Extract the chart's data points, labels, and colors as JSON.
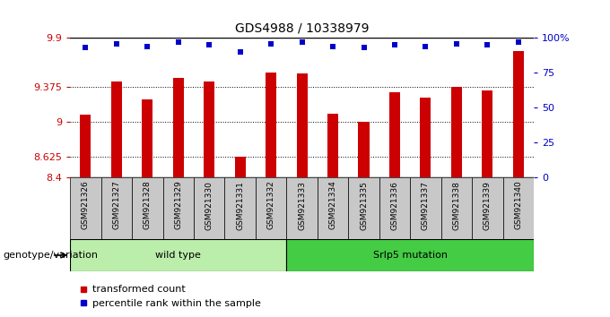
{
  "title": "GDS4988 / 10338979",
  "samples": [
    "GSM921326",
    "GSM921327",
    "GSM921328",
    "GSM921329",
    "GSM921330",
    "GSM921331",
    "GSM921332",
    "GSM921333",
    "GSM921334",
    "GSM921335",
    "GSM921336",
    "GSM921337",
    "GSM921338",
    "GSM921339",
    "GSM921340"
  ],
  "bar_values": [
    9.08,
    9.43,
    9.24,
    9.47,
    9.43,
    8.62,
    9.53,
    9.52,
    9.09,
    9.0,
    9.32,
    9.26,
    9.375,
    9.34,
    9.76
  ],
  "dot_values": [
    93,
    96,
    94,
    97,
    95,
    90,
    96,
    97,
    94,
    93,
    95,
    94,
    96,
    95,
    97
  ],
  "ylim": [
    8.4,
    9.9
  ],
  "yticks": [
    8.4,
    8.625,
    9.0,
    9.375,
    9.9
  ],
  "ytick_labels": [
    "8.4",
    "8.625",
    "9",
    "9.375",
    "9.9"
  ],
  "y2lim": [
    0,
    100
  ],
  "y2ticks": [
    0,
    25,
    50,
    75,
    100
  ],
  "y2tick_labels": [
    "0",
    "25",
    "50",
    "75",
    "100%"
  ],
  "bar_color": "#CC0000",
  "dot_color": "#0000CC",
  "bg_color": "#FFFFFF",
  "tick_area_color": "#C8C8C8",
  "groups": [
    {
      "label": "wild type",
      "start": 0,
      "end": 7,
      "color": "#BBEEAA"
    },
    {
      "label": "Srlp5 mutation",
      "start": 7,
      "end": 15,
      "color": "#44CC44"
    }
  ],
  "group_label": "genotype/variation",
  "legend_items": [
    {
      "label": "transformed count",
      "color": "#CC0000"
    },
    {
      "label": "percentile rank within the sample",
      "color": "#0000CC"
    }
  ],
  "bar_width": 0.35
}
